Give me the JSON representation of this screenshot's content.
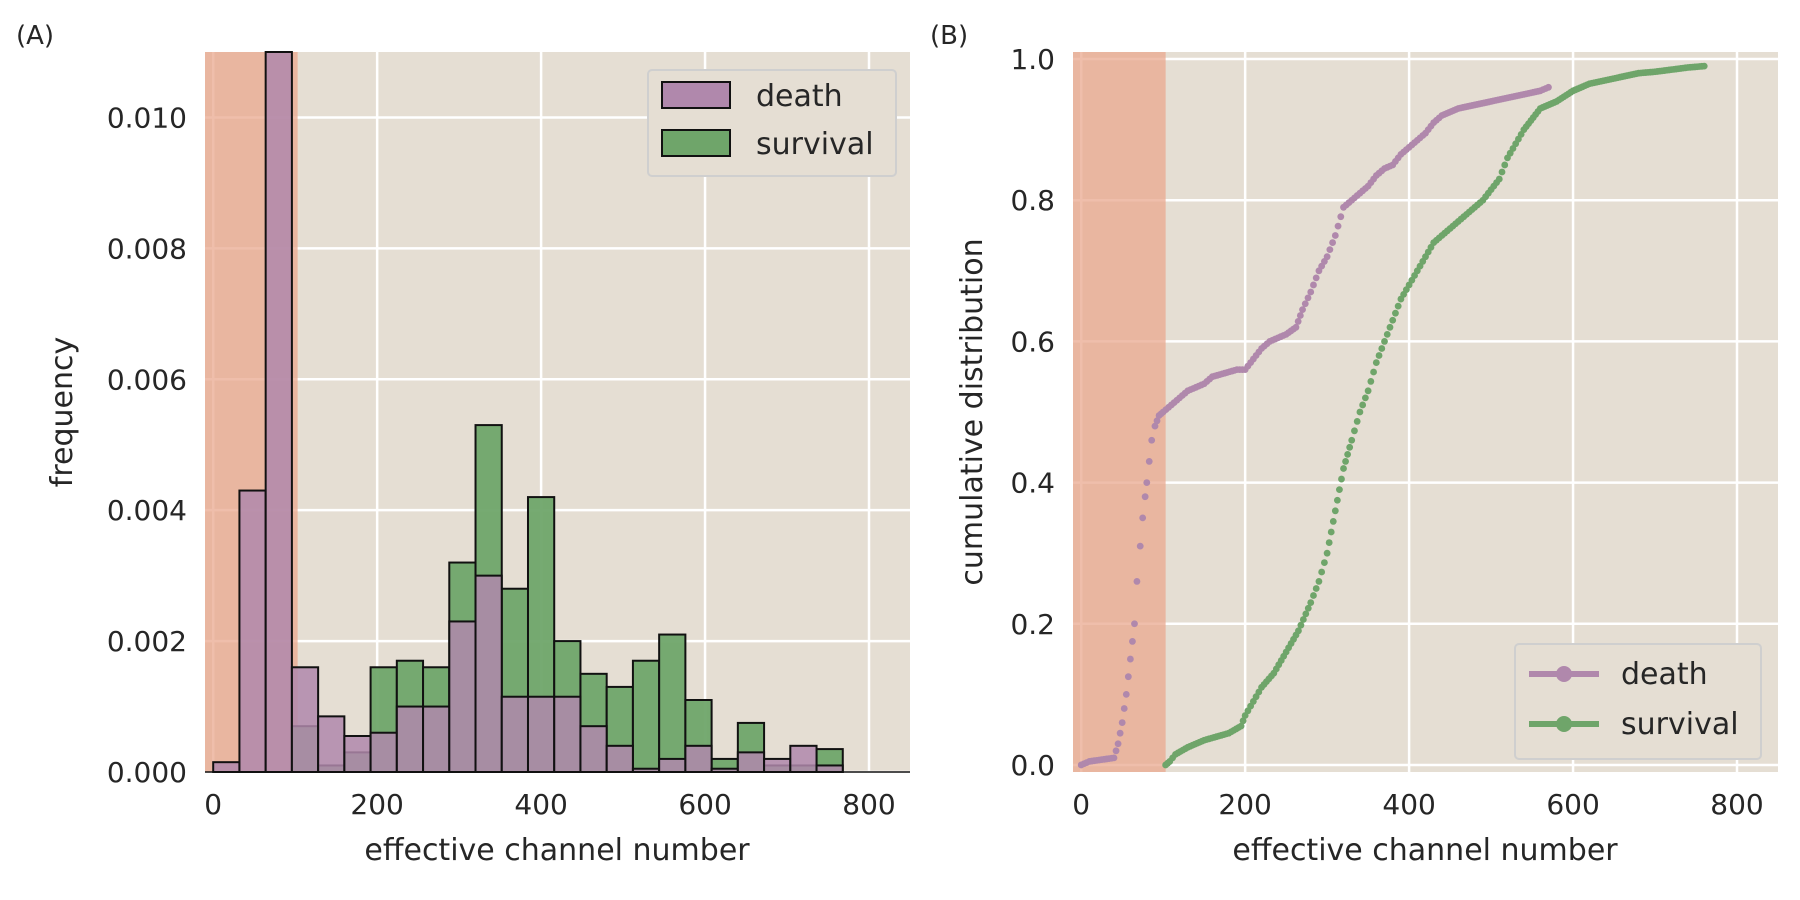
{
  "chart_data": [
    {
      "panel_label": "(A)",
      "type": "bar",
      "subtype": "histogram-overlay",
      "xlabel": "effective channel number",
      "ylabel": "frequency",
      "xlim": [
        -10,
        850
      ],
      "ylim": [
        0,
        0.011
      ],
      "xticks": [
        "0",
        "200",
        "400",
        "600",
        "800"
      ],
      "xtick_values": [
        0,
        200,
        400,
        600,
        800
      ],
      "yticks": [
        "0.000",
        "0.002",
        "0.004",
        "0.006",
        "0.008",
        "0.010"
      ],
      "ytick_values": [
        0,
        0.002,
        0.004,
        0.006,
        0.008,
        0.01
      ],
      "grid": true,
      "legend_placement": "top-right",
      "shaded_region": {
        "x_start": -10,
        "x_end": 103,
        "color": "#e9a88f"
      },
      "bin_edges": [
        0,
        32,
        64,
        96,
        128,
        160,
        192,
        224,
        256,
        288,
        320,
        352,
        384,
        416,
        448,
        480,
        512,
        544,
        576,
        608,
        640,
        672,
        704,
        736,
        768
      ],
      "series": [
        {
          "name": "survival",
          "color": "#6fa56a",
          "values": [
            0,
            0,
            0,
            0.0007,
            0.0001,
            0.0003,
            0.0016,
            0.0017,
            0.0016,
            0.0032,
            0.0053,
            0.0028,
            0.0042,
            0.002,
            0.0015,
            0.0013,
            0.0017,
            0.0021,
            0.0011,
            0.0002,
            0.00075,
            0.0001,
            0.0001,
            0.00035
          ]
        },
        {
          "name": "death",
          "color": "#b088ac",
          "values": [
            0.00015,
            0.0043,
            0.011,
            0.0016,
            0.00085,
            0.00055,
            0.0006,
            0.001,
            0.001,
            0.0023,
            0.003,
            0.00115,
            0.00115,
            0.00115,
            0.0007,
            0.0004,
            5e-05,
            0.0002,
            0.0004,
            5e-05,
            0.0003,
            0.0002,
            0.0004,
            0.0001
          ]
        }
      ]
    },
    {
      "panel_label": "(B)",
      "type": "scatter",
      "subtype": "ecdf",
      "xlabel": "effective channel number",
      "ylabel": "cumulative distribution",
      "xlim": [
        -10,
        850
      ],
      "ylim": [
        -0.01,
        1.01
      ],
      "xticks": [
        "0",
        "200",
        "400",
        "600",
        "800"
      ],
      "xtick_values": [
        0,
        200,
        400,
        600,
        800
      ],
      "yticks": [
        "0.0",
        "0.2",
        "0.4",
        "0.6",
        "0.8",
        "1.0"
      ],
      "ytick_values": [
        0,
        0.2,
        0.4,
        0.6,
        0.8,
        1.0
      ],
      "grid": true,
      "legend_placement": "bottom-right",
      "shaded_region": {
        "x_start": -10,
        "x_end": 103,
        "color": "#e9a88f"
      },
      "series": [
        {
          "name": "death",
          "color": "#b088ac",
          "x": [
            0,
            10,
            40,
            45,
            50,
            55,
            60,
            65,
            68,
            72,
            75,
            78,
            80,
            83,
            86,
            90,
            95,
            100,
            110,
            120,
            130,
            140,
            150,
            160,
            175,
            190,
            200,
            210,
            220,
            230,
            240,
            250,
            262,
            270,
            280,
            290,
            300,
            310,
            320,
            330,
            340,
            350,
            360,
            370,
            380,
            390,
            400,
            410,
            420,
            430,
            440,
            460,
            480,
            500,
            520,
            540,
            560,
            570
          ],
          "y": [
            0,
            0.005,
            0.01,
            0.03,
            0.06,
            0.1,
            0.15,
            0.2,
            0.26,
            0.31,
            0.35,
            0.38,
            0.4,
            0.43,
            0.46,
            0.48,
            0.495,
            0.5,
            0.51,
            0.52,
            0.53,
            0.535,
            0.54,
            0.55,
            0.555,
            0.56,
            0.56,
            0.575,
            0.59,
            0.6,
            0.605,
            0.61,
            0.62,
            0.645,
            0.67,
            0.7,
            0.72,
            0.75,
            0.79,
            0.8,
            0.81,
            0.82,
            0.835,
            0.845,
            0.85,
            0.865,
            0.875,
            0.885,
            0.895,
            0.91,
            0.92,
            0.93,
            0.935,
            0.94,
            0.945,
            0.95,
            0.955,
            0.96
          ]
        },
        {
          "name": "survival",
          "color": "#6fa56a",
          "x": [
            103,
            108,
            115,
            130,
            150,
            165,
            180,
            195,
            200,
            210,
            220,
            235,
            250,
            265,
            280,
            290,
            300,
            305,
            310,
            315,
            320,
            325,
            330,
            340,
            350,
            360,
            370,
            380,
            390,
            400,
            410,
            420,
            430,
            440,
            450,
            460,
            470,
            480,
            490,
            500,
            510,
            520,
            530,
            540,
            560,
            580,
            600,
            620,
            640,
            660,
            680,
            700,
            720,
            740,
            760
          ],
          "y": [
            0,
            0.005,
            0.015,
            0.025,
            0.035,
            0.04,
            0.045,
            0.055,
            0.07,
            0.09,
            0.11,
            0.13,
            0.16,
            0.19,
            0.23,
            0.26,
            0.3,
            0.33,
            0.36,
            0.39,
            0.42,
            0.44,
            0.46,
            0.5,
            0.53,
            0.57,
            0.6,
            0.63,
            0.66,
            0.68,
            0.7,
            0.72,
            0.74,
            0.75,
            0.76,
            0.77,
            0.78,
            0.79,
            0.8,
            0.815,
            0.83,
            0.86,
            0.88,
            0.9,
            0.93,
            0.94,
            0.955,
            0.965,
            0.97,
            0.975,
            0.98,
            0.982,
            0.985,
            0.988,
            0.99
          ]
        }
      ]
    }
  ]
}
